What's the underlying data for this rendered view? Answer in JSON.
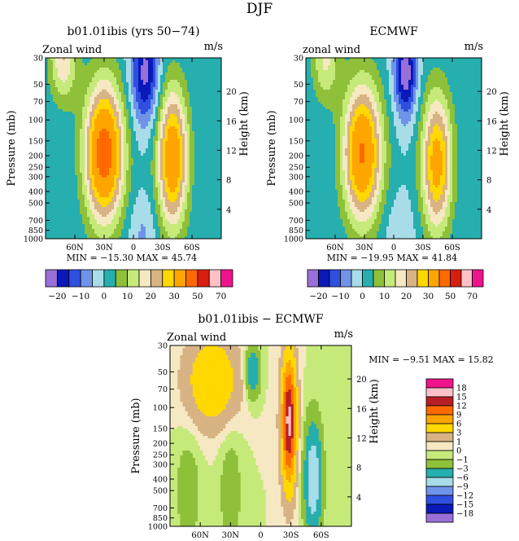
{
  "page": {
    "title": "DJF"
  },
  "palette_main": [
    "#9a6fd8",
    "#0a19b8",
    "#2e4fe0",
    "#6f93e8",
    "#a8dce8",
    "#27aeae",
    "#8fc03a",
    "#c5ea7a",
    "#f6e8c2",
    "#d8b383",
    "#ffd800",
    "#ffa500",
    "#ff6a00",
    "#d81e10",
    "#ffc0c8",
    "#f0148c"
  ],
  "palette_diff": [
    "#9a6fd8",
    "#0a19b8",
    "#2e4fe0",
    "#6f93e8",
    "#a8dce8",
    "#27aeae",
    "#8fc03a",
    "#c5ea7a",
    "#f6e8c2",
    "#d8b383",
    "#ffd800",
    "#ffa500",
    "#ff6a00",
    "#b81e24",
    "#ffc0c8",
    "#f0148c"
  ],
  "chart_data": [
    {
      "type": "heatmap",
      "title": "b01.01ibis (yrs 50−74)",
      "left_label": "Zonal wind",
      "right_label": "m/s",
      "ylabel": "Pressure (mb)",
      "y2label": "Height (km)",
      "xticks": [
        "60N",
        "30N",
        "0",
        "30S",
        "60S"
      ],
      "yticks": [
        "30",
        "50",
        "70",
        "100",
        "150",
        "200",
        "250",
        "300",
        "400",
        "500",
        "700",
        "850",
        "1000"
      ],
      "y2ticks": [
        "20",
        "16",
        "12",
        "8",
        "4"
      ],
      "stats": "MIN = −15.30   MAX =  45.74",
      "colorbar_labels": [
        "−20",
        "−10",
        "0",
        "10",
        "20",
        "30",
        "50",
        "70"
      ],
      "features": [
        {
          "lat": 30,
          "p": 190,
          "peak": 46,
          "sl": 14,
          "sp": 0.95
        },
        {
          "lat": -40,
          "p": 210,
          "peak": 38,
          "sl": 11,
          "sp": 0.95
        },
        {
          "lat": 72,
          "p": 30,
          "peak": 20,
          "sl": 10,
          "sp": 0.6
        },
        {
          "lat": -12,
          "p": 40,
          "peak": -22,
          "sl": 10,
          "sp": 0.7
        },
        {
          "lat": -10,
          "p": 900,
          "peak": -6,
          "sl": 10,
          "sp": 0.5
        }
      ]
    },
    {
      "type": "heatmap",
      "title": "ECMWF",
      "left_label": "zonal wind",
      "right_label": "m/s",
      "ylabel": "Pressure (mb)",
      "y2label": "Height (km)",
      "xticks": [
        "60N",
        "30N",
        "0",
        "30S",
        "60S"
      ],
      "yticks": [
        "30",
        "50",
        "70",
        "100",
        "150",
        "200",
        "250",
        "300",
        "400",
        "500",
        "700",
        "850",
        "1000"
      ],
      "y2ticks": [
        "20",
        "16",
        "12",
        "8",
        "4"
      ],
      "stats": "MIN = −19.95   MAX =  41.84",
      "colorbar_labels": [
        "−20",
        "−10",
        "0",
        "10",
        "20",
        "30",
        "50",
        "70"
      ],
      "features": [
        {
          "lat": 32,
          "p": 190,
          "peak": 41,
          "sl": 14,
          "sp": 0.95
        },
        {
          "lat": -44,
          "p": 230,
          "peak": 34,
          "sl": 11,
          "sp": 0.95
        },
        {
          "lat": 70,
          "p": 30,
          "peak": 16,
          "sl": 10,
          "sp": 0.6
        },
        {
          "lat": -12,
          "p": 40,
          "peak": -24,
          "sl": 8,
          "sp": 0.6
        },
        {
          "lat": -5,
          "p": 900,
          "peak": -4,
          "sl": 12,
          "sp": 0.5
        }
      ]
    },
    {
      "type": "heatmap",
      "title": "b01.01ibis − ECMWF",
      "left_label": "Zonal wind",
      "right_label": "m/s",
      "ylabel": "Pressure (mb)",
      "y2label": "Height (km)",
      "xticks": [
        "60N",
        "30N",
        "0",
        "30S",
        "60S"
      ],
      "yticks": [
        "30",
        "50",
        "70",
        "100",
        "150",
        "200",
        "250",
        "300",
        "400",
        "500",
        "700",
        "850",
        "1000"
      ],
      "y2ticks": [
        "20",
        "16",
        "12",
        "8",
        "4"
      ],
      "stats": "MIN =   −9.51   MAX =  15.82",
      "colorbar_labels": [
        "18",
        "15",
        "12",
        "9",
        "6",
        "3",
        "1",
        "0",
        "−1",
        "−3",
        "−6",
        "−9",
        "−12",
        "−15",
        "−18"
      ],
      "features": [
        {
          "lat": -28,
          "p": 130,
          "peak": 16,
          "sl": 5,
          "sp": 0.85
        },
        {
          "lat": -52,
          "p": 400,
          "peak": -9,
          "sl": 6,
          "sp": 0.75
        },
        {
          "lat": 8,
          "p": 50,
          "peak": -6,
          "sl": 5,
          "sp": 0.35
        },
        {
          "lat": 72,
          "p": 500,
          "peak": -2,
          "sl": 9,
          "sp": 0.8
        },
        {
          "lat": 48,
          "p": 60,
          "peak": 6,
          "sl": 18,
          "sp": 0.6
        },
        {
          "lat": 30,
          "p": 500,
          "peak": -2,
          "sl": 8,
          "sp": 0.9
        }
      ]
    }
  ]
}
